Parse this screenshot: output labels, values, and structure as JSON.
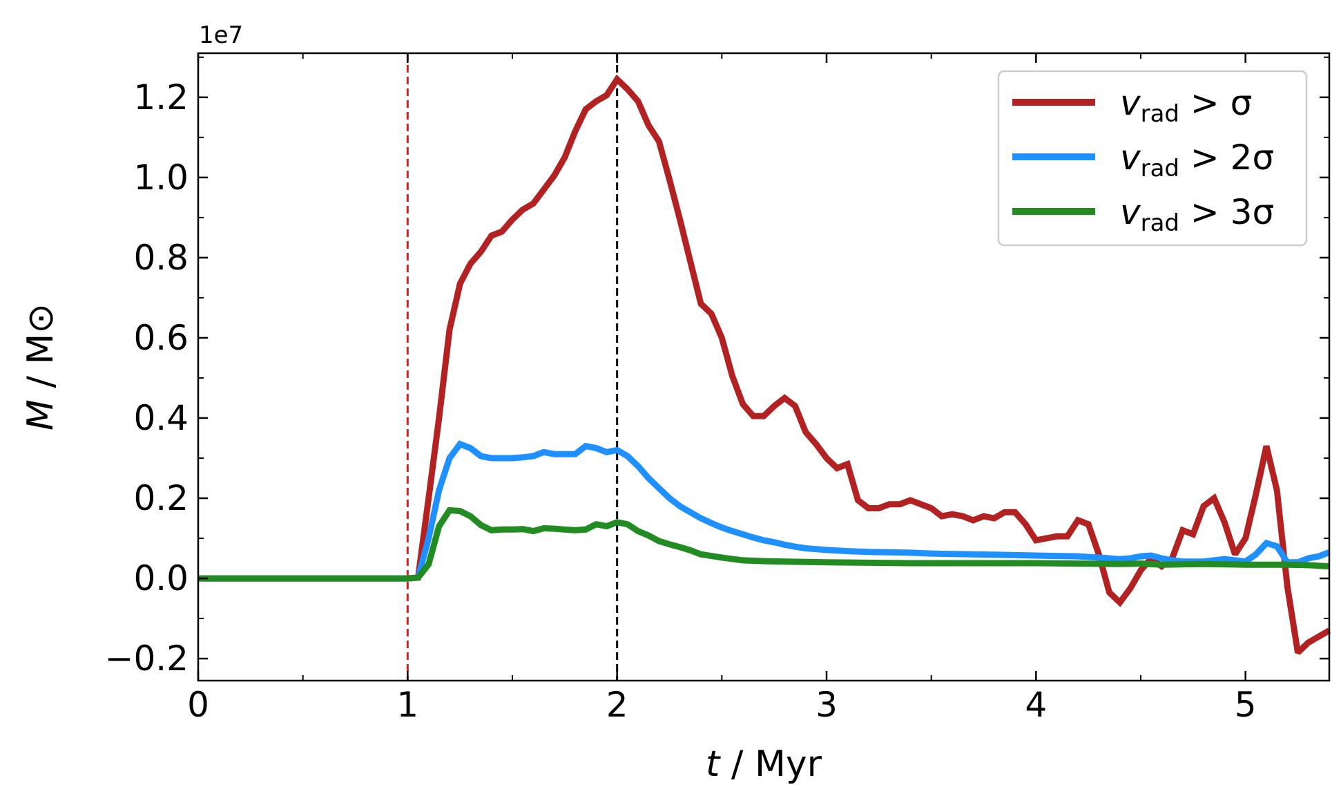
{
  "chart_data": {
    "type": "line",
    "offset_text": "1e7",
    "xlabel": {
      "var": "t",
      "unit": " / Myr"
    },
    "ylabel": {
      "var": "M",
      "unit": " / M⊙"
    },
    "xlim": [
      0,
      5.4
    ],
    "ylim": [
      -0.255,
      1.31
    ],
    "xticks": [
      0,
      1,
      2,
      3,
      4,
      5
    ],
    "xtick_labels": [
      "0",
      "1",
      "2",
      "3",
      "4",
      "5"
    ],
    "yticks": [
      -0.2,
      0.0,
      0.2,
      0.4,
      0.6,
      0.8,
      1.0,
      1.2
    ],
    "ytick_labels": [
      "−0.2",
      "0.0",
      "0.2",
      "0.4",
      "0.6",
      "0.8",
      "1.0",
      "1.2"
    ],
    "vlines": [
      {
        "x": 1.0,
        "color": "#e31a1c",
        "style": "dashed"
      },
      {
        "x": 2.0,
        "color": "#000000",
        "style": "dashed"
      }
    ],
    "legend_position": "top-right",
    "grid": false,
    "series": [
      {
        "legend": {
          "var": "v",
          "sub": "rad",
          "rest": " > σ"
        },
        "color": "#b22222",
        "x": [
          0,
          0.2,
          0.4,
          0.6,
          0.8,
          1.0,
          1.05,
          1.1,
          1.15,
          1.2,
          1.25,
          1.3,
          1.35,
          1.4,
          1.45,
          1.5,
          1.55,
          1.6,
          1.65,
          1.7,
          1.75,
          1.8,
          1.85,
          1.9,
          1.95,
          2.0,
          2.05,
          2.1,
          2.15,
          2.2,
          2.25,
          2.3,
          2.35,
          2.4,
          2.45,
          2.5,
          2.55,
          2.6,
          2.65,
          2.7,
          2.75,
          2.8,
          2.85,
          2.9,
          2.95,
          3.0,
          3.05,
          3.1,
          3.15,
          3.2,
          3.25,
          3.3,
          3.35,
          3.4,
          3.45,
          3.5,
          3.55,
          3.6,
          3.65,
          3.7,
          3.75,
          3.8,
          3.85,
          3.9,
          3.95,
          4.0,
          4.05,
          4.1,
          4.15,
          4.2,
          4.25,
          4.3,
          4.35,
          4.4,
          4.45,
          4.5,
          4.55,
          4.6,
          4.65,
          4.7,
          4.75,
          4.8,
          4.85,
          4.9,
          4.95,
          5.0,
          5.05,
          5.1,
          5.15,
          5.2,
          5.25,
          5.3,
          5.35,
          5.4
        ],
        "y": [
          0,
          0,
          0,
          0,
          0,
          0,
          0.002,
          0.2,
          0.4,
          0.62,
          0.735,
          0.785,
          0.815,
          0.855,
          0.865,
          0.895,
          0.92,
          0.935,
          0.97,
          1.005,
          1.05,
          1.115,
          1.17,
          1.19,
          1.205,
          1.245,
          1.22,
          1.19,
          1.13,
          1.09,
          0.995,
          0.895,
          0.79,
          0.685,
          0.66,
          0.6,
          0.505,
          0.435,
          0.405,
          0.405,
          0.43,
          0.45,
          0.43,
          0.365,
          0.335,
          0.3,
          0.275,
          0.285,
          0.195,
          0.175,
          0.175,
          0.185,
          0.185,
          0.195,
          0.185,
          0.175,
          0.155,
          0.16,
          0.155,
          0.145,
          0.155,
          0.15,
          0.165,
          0.165,
          0.135,
          0.095,
          0.1,
          0.105,
          0.105,
          0.145,
          0.135,
          0.06,
          -0.035,
          -0.06,
          -0.025,
          0.02,
          0.05,
          0.03,
          0.05,
          0.12,
          0.11,
          0.18,
          0.2,
          0.14,
          0.06,
          0.1,
          0.21,
          0.33,
          0.22,
          -0.02,
          -0.185,
          -0.16,
          -0.145,
          -0.13
        ]
      },
      {
        "legend": {
          "var": "v",
          "sub": "rad",
          "rest": " > 2σ"
        },
        "color": "#1e90ff",
        "x": [
          0,
          0.2,
          0.4,
          0.6,
          0.8,
          1.0,
          1.05,
          1.1,
          1.15,
          1.2,
          1.25,
          1.3,
          1.35,
          1.4,
          1.45,
          1.5,
          1.55,
          1.6,
          1.65,
          1.7,
          1.75,
          1.8,
          1.85,
          1.9,
          1.95,
          2.0,
          2.05,
          2.1,
          2.15,
          2.2,
          2.25,
          2.3,
          2.35,
          2.4,
          2.45,
          2.5,
          2.55,
          2.6,
          2.65,
          2.7,
          2.75,
          2.8,
          2.85,
          2.9,
          2.95,
          3.0,
          3.1,
          3.2,
          3.3,
          3.4,
          3.5,
          3.6,
          3.7,
          3.8,
          3.9,
          4.0,
          4.1,
          4.2,
          4.3,
          4.4,
          4.45,
          4.5,
          4.55,
          4.6,
          4.65,
          4.7,
          4.75,
          4.8,
          4.85,
          4.9,
          4.95,
          5.0,
          5.05,
          5.1,
          5.15,
          5.2,
          5.25,
          5.3,
          5.35,
          5.4
        ],
        "y": [
          0,
          0,
          0,
          0,
          0,
          0,
          0.002,
          0.1,
          0.22,
          0.3,
          0.335,
          0.325,
          0.305,
          0.3,
          0.3,
          0.3,
          0.302,
          0.305,
          0.315,
          0.31,
          0.31,
          0.31,
          0.33,
          0.325,
          0.315,
          0.32,
          0.305,
          0.28,
          0.25,
          0.225,
          0.2,
          0.18,
          0.165,
          0.15,
          0.138,
          0.127,
          0.118,
          0.11,
          0.102,
          0.095,
          0.09,
          0.084,
          0.079,
          0.075,
          0.073,
          0.071,
          0.068,
          0.066,
          0.065,
          0.064,
          0.062,
          0.061,
          0.06,
          0.059,
          0.058,
          0.057,
          0.056,
          0.055,
          0.052,
          0.048,
          0.05,
          0.055,
          0.057,
          0.05,
          0.045,
          0.042,
          0.042,
          0.042,
          0.045,
          0.048,
          0.045,
          0.042,
          0.06,
          0.088,
          0.08,
          0.04,
          0.04,
          0.05,
          0.055,
          0.065
        ]
      },
      {
        "legend": {
          "var": "v",
          "sub": "rad",
          "rest": " > 3σ"
        },
        "color": "#228b22",
        "x": [
          0,
          0.2,
          0.4,
          0.6,
          0.8,
          1.0,
          1.05,
          1.1,
          1.15,
          1.2,
          1.25,
          1.3,
          1.35,
          1.4,
          1.45,
          1.5,
          1.55,
          1.6,
          1.65,
          1.7,
          1.75,
          1.8,
          1.85,
          1.9,
          1.95,
          2.0,
          2.05,
          2.1,
          2.15,
          2.2,
          2.25,
          2.3,
          2.35,
          2.4,
          2.5,
          2.6,
          2.7,
          2.8,
          2.9,
          3.0,
          3.2,
          3.4,
          3.6,
          3.8,
          4.0,
          4.2,
          4.4,
          4.5,
          4.6,
          4.7,
          4.8,
          4.9,
          5.0,
          5.1,
          5.2,
          5.3,
          5.4
        ],
        "y": [
          0,
          0,
          0,
          0,
          0,
          0,
          0.002,
          0.035,
          0.13,
          0.17,
          0.168,
          0.155,
          0.133,
          0.12,
          0.122,
          0.122,
          0.123,
          0.118,
          0.125,
          0.124,
          0.122,
          0.12,
          0.122,
          0.135,
          0.13,
          0.14,
          0.135,
          0.118,
          0.107,
          0.093,
          0.085,
          0.078,
          0.07,
          0.06,
          0.052,
          0.045,
          0.043,
          0.042,
          0.041,
          0.04,
          0.039,
          0.038,
          0.038,
          0.038,
          0.038,
          0.037,
          0.036,
          0.037,
          0.034,
          0.035,
          0.036,
          0.035,
          0.034,
          0.034,
          0.034,
          0.033,
          0.03
        ]
      }
    ]
  }
}
